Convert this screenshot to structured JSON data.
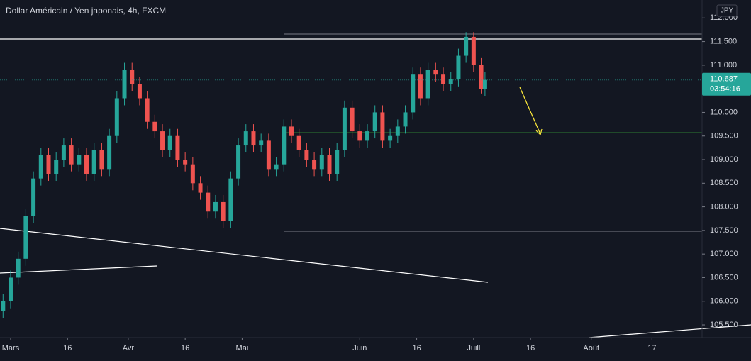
{
  "chart_data": {
    "type": "candlestick",
    "title": "Dollar Américain / Yen japonais, 4h, FXCM",
    "currency": "JPY",
    "countdown": "03:54:16",
    "up_color": "#26a69a",
    "down_color": "#ef5350",
    "x": [
      -2,
      0,
      2,
      4,
      6,
      8,
      10,
      12,
      14,
      16,
      18,
      20,
      22,
      24,
      26,
      28,
      30,
      32,
      34,
      36,
      38,
      40,
      42,
      44,
      46,
      48,
      50,
      52,
      54,
      56,
      58,
      60,
      62,
      64,
      66,
      68,
      70,
      72,
      74,
      76,
      78,
      80,
      82,
      84,
      86,
      88,
      90,
      92,
      94,
      96,
      98,
      100,
      102,
      104,
      106,
      108,
      110,
      112,
      114,
      116,
      118,
      120,
      122,
      124,
      125
    ],
    "open": [
      105.8,
      106.0,
      106.5,
      106.9,
      107.8,
      108.6,
      109.1,
      108.7,
      109.0,
      109.3,
      108.9,
      109.1,
      108.7,
      109.2,
      108.8,
      109.5,
      110.3,
      110.9,
      110.6,
      110.3,
      109.8,
      109.6,
      109.2,
      109.5,
      109.0,
      108.9,
      108.5,
      108.3,
      107.9,
      108.1,
      107.7,
      108.6,
      109.3,
      109.6,
      109.3,
      109.4,
      108.8,
      108.9,
      109.7,
      109.5,
      109.2,
      109.0,
      108.8,
      109.1,
      108.7,
      109.2,
      110.1,
      109.6,
      109.4,
      109.6,
      110.0,
      109.4,
      109.5,
      109.7,
      110.0,
      110.8,
      110.3,
      110.9,
      110.8,
      110.6,
      110.7,
      111.2,
      111.6,
      111.0,
      110.5
    ],
    "high": [
      106.15,
      106.65,
      107.05,
      107.95,
      108.75,
      109.25,
      109.25,
      109.15,
      109.45,
      109.45,
      109.25,
      109.25,
      109.35,
      109.35,
      109.65,
      110.45,
      111.05,
      111.05,
      110.75,
      110.45,
      109.95,
      109.75,
      109.65,
      109.65,
      109.15,
      109.05,
      108.65,
      108.45,
      108.25,
      108.25,
      108.75,
      109.45,
      109.75,
      109.75,
      109.55,
      109.55,
      109.05,
      109.85,
      109.85,
      109.65,
      109.35,
      109.15,
      109.25,
      109.25,
      109.35,
      110.25,
      110.25,
      109.75,
      109.75,
      110.15,
      110.15,
      109.65,
      109.85,
      110.15,
      110.95,
      110.95,
      111.05,
      111.05,
      110.95,
      110.85,
      111.35,
      111.7,
      111.7,
      111.15,
      110.85
    ],
    "low": [
      105.65,
      105.85,
      106.35,
      106.75,
      107.65,
      108.45,
      108.55,
      108.55,
      108.85,
      108.75,
      108.75,
      108.55,
      108.55,
      108.65,
      108.65,
      109.35,
      110.15,
      110.45,
      110.15,
      109.65,
      109.45,
      109.05,
      109.05,
      108.85,
      108.75,
      108.35,
      108.15,
      107.75,
      107.75,
      107.55,
      107.55,
      108.45,
      109.15,
      109.15,
      109.15,
      108.65,
      108.65,
      108.75,
      109.35,
      109.05,
      108.85,
      108.65,
      108.65,
      108.55,
      108.55,
      109.05,
      109.45,
      109.25,
      109.25,
      109.45,
      109.25,
      109.25,
      109.35,
      109.55,
      109.85,
      110.15,
      110.15,
      110.65,
      110.45,
      110.45,
      110.55,
      111.05,
      110.85,
      110.4,
      110.35
    ],
    "close": [
      106.0,
      106.5,
      106.9,
      107.8,
      108.6,
      109.1,
      108.7,
      109.0,
      109.3,
      108.9,
      109.1,
      108.7,
      109.2,
      108.8,
      109.5,
      110.3,
      110.9,
      110.6,
      110.3,
      109.8,
      109.6,
      109.2,
      109.5,
      109.0,
      108.9,
      108.5,
      108.3,
      107.9,
      108.1,
      107.7,
      108.6,
      109.3,
      109.6,
      109.3,
      109.4,
      108.8,
      108.9,
      109.7,
      109.5,
      109.2,
      109.0,
      108.8,
      109.1,
      108.7,
      109.2,
      110.1,
      109.6,
      109.4,
      109.6,
      110.0,
      109.4,
      109.5,
      109.7,
      110.0,
      110.8,
      110.3,
      110.9,
      110.8,
      110.6,
      110.7,
      111.2,
      111.6,
      111.0,
      110.5,
      110.687
    ],
    "xlim": [
      -2.8,
      182.2
    ],
    "xticks": [
      {
        "value": 0,
        "label": "Mars"
      },
      {
        "value": 15,
        "label": "16"
      },
      {
        "value": 31,
        "label": "Avr"
      },
      {
        "value": 46,
        "label": "16"
      },
      {
        "value": 61,
        "label": "Mai"
      },
      {
        "value": 92,
        "label": "Juin"
      },
      {
        "value": 107,
        "label": "16"
      },
      {
        "value": 122,
        "label": "Juill"
      },
      {
        "value": 137,
        "label": "16"
      },
      {
        "value": 153,
        "label": "Août"
      },
      {
        "value": 169,
        "label": "17"
      }
    ],
    "ylim": [
      105.23,
      112.38
    ],
    "yticks": [
      {
        "value": 112,
        "label": "112.000"
      },
      {
        "value": 111.5,
        "label": "111.500"
      },
      {
        "value": 111,
        "label": "111.000"
      },
      {
        "value": 110.5,
        "label": "110.500"
      },
      {
        "value": 110,
        "label": "110.000"
      },
      {
        "value": 109.5,
        "label": "109.500"
      },
      {
        "value": 109,
        "label": "109.000"
      },
      {
        "value": 108.5,
        "label": "108.500"
      },
      {
        "value": 108,
        "label": "108.000"
      },
      {
        "value": 107.5,
        "label": "107.500"
      },
      {
        "value": 107,
        "label": "107.000"
      },
      {
        "value": 106.5,
        "label": "106.500"
      },
      {
        "value": 106,
        "label": "106.000"
      },
      {
        "value": 105.5,
        "label": "105.500"
      }
    ]
  }
}
